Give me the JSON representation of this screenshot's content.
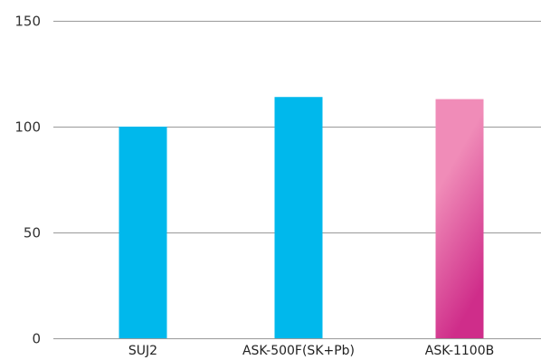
{
  "chart_data": {
    "type": "bar",
    "categories": [
      "SUJ2",
      "ASK-500F(SK+Pb)",
      "ASK-1100B"
    ],
    "values": [
      100,
      114,
      113
    ],
    "yticks": [
      0,
      50,
      100,
      150
    ],
    "ylim": [
      0,
      150
    ],
    "grid": true,
    "title": "",
    "xlabel": "",
    "ylabel": "",
    "colors": {
      "SUJ2": "#00b8ec",
      "ASK-500F(SK+Pb)": "#00b8ec",
      "ASK-1100B": {
        "top": "#f08cb8",
        "bottom": "#cf2d8a"
      }
    }
  }
}
